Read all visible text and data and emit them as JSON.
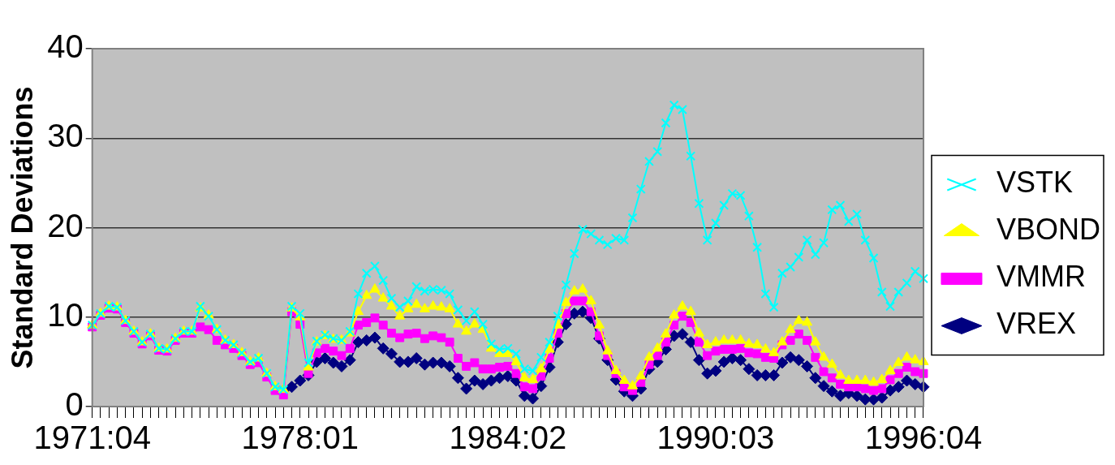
{
  "chart_data": {
    "type": "line",
    "ylabel": "Standard Deviations",
    "categories": [
      "1971:04",
      null,
      null,
      null,
      null,
      null,
      null,
      null,
      null,
      null,
      null,
      null,
      null,
      null,
      null,
      null,
      null,
      null,
      null,
      null,
      null,
      null,
      null,
      null,
      null,
      "1978:01",
      null,
      null,
      null,
      null,
      null,
      null,
      null,
      null,
      null,
      null,
      null,
      null,
      null,
      null,
      null,
      null,
      null,
      null,
      null,
      null,
      null,
      null,
      null,
      null,
      "1984:02",
      null,
      null,
      null,
      null,
      null,
      null,
      null,
      null,
      null,
      null,
      null,
      null,
      null,
      null,
      null,
      null,
      null,
      null,
      null,
      null,
      null,
      null,
      null,
      null,
      "1990:03",
      null,
      null,
      null,
      null,
      null,
      null,
      null,
      null,
      null,
      null,
      null,
      null,
      null,
      null,
      null,
      null,
      null,
      null,
      null,
      null,
      null,
      null,
      null,
      null,
      "1996:04"
    ],
    "series": [
      {
        "name": "VSTK",
        "color": "#00ffff",
        "marker": "cross",
        "values": [
          9.1,
          10.4,
          11.2,
          11.1,
          9.6,
          8.4,
          7.2,
          8.1,
          6.5,
          6.4,
          7.6,
          8.4,
          8.4,
          11.2,
          10.1,
          8.6,
          7.4,
          6.9,
          6.0,
          5.0,
          5.4,
          3.7,
          2.2,
          1.9,
          11.2,
          10.4,
          4.9,
          7.3,
          8.0,
          7.6,
          7.4,
          8.4,
          12.6,
          14.9,
          15.7,
          14.1,
          12.1,
          11.1,
          11.8,
          13.4,
          12.9,
          13.1,
          13.0,
          12.6,
          10.8,
          9.6,
          10.6,
          9.2,
          7.0,
          6.4,
          6.5,
          5.9,
          4.2,
          4.0,
          5.5,
          7.2,
          10.1,
          13.6,
          17.1,
          19.8,
          19.3,
          18.6,
          18.1,
          18.8,
          18.6,
          21.1,
          24.3,
          27.4,
          28.5,
          31.7,
          33.7,
          33.2,
          28.0,
          22.7,
          18.6,
          20.5,
          22.5,
          23.8,
          23.6,
          21.3,
          17.8,
          12.6,
          11.1,
          14.9,
          15.6,
          16.7,
          18.6,
          17.0,
          18.3,
          22.0,
          22.5,
          20.7,
          21.5,
          18.6,
          16.6,
          12.8,
          11.2,
          12.8,
          13.8,
          15.1,
          14.3
        ]
      },
      {
        "name": "VBOND",
        "color": "#ffff00",
        "marker": "triangle",
        "values": [
          9.1,
          10.4,
          11.2,
          11.1,
          9.6,
          8.4,
          7.2,
          8.1,
          6.5,
          6.4,
          7.6,
          8.4,
          8.4,
          11.0,
          10.2,
          8.6,
          7.4,
          6.9,
          6.0,
          5.0,
          5.4,
          3.7,
          2.2,
          1.9,
          11.0,
          10.0,
          4.4,
          7.2,
          7.9,
          7.5,
          7.4,
          8.2,
          10.6,
          12.4,
          13.1,
          12.1,
          11.2,
          10.1,
          10.9,
          11.4,
          10.9,
          11.2,
          11.1,
          10.9,
          9.2,
          8.4,
          9.2,
          8.6,
          6.5,
          5.9,
          5.9,
          5.0,
          3.2,
          3.0,
          4.2,
          6.4,
          9.1,
          11.6,
          12.9,
          13.1,
          11.8,
          9.1,
          6.2,
          4.0,
          2.9,
          2.3,
          3.4,
          5.5,
          6.5,
          8.1,
          10.2,
          11.2,
          10.6,
          8.2,
          6.9,
          7.2,
          7.4,
          7.4,
          7.4,
          7.0,
          6.9,
          6.4,
          6.0,
          7.2,
          8.6,
          9.6,
          9.4,
          7.2,
          5.5,
          4.7,
          3.5,
          2.9,
          2.9,
          2.9,
          2.7,
          3.0,
          4.0,
          4.9,
          5.5,
          5.2,
          5.0
        ]
      },
      {
        "name": "VMMR",
        "color": "#ff00ff",
        "marker": "square",
        "values": [
          8.9,
          10.2,
          11.0,
          10.9,
          9.4,
          8.2,
          7.0,
          7.9,
          6.3,
          6.2,
          7.4,
          8.2,
          8.2,
          8.9,
          8.6,
          7.4,
          6.9,
          6.5,
          5.7,
          4.7,
          4.9,
          3.3,
          1.8,
          1.3,
          10.6,
          9.2,
          3.7,
          6.0,
          6.5,
          6.2,
          5.7,
          6.5,
          9.1,
          9.4,
          9.9,
          9.1,
          8.2,
          7.7,
          8.1,
          8.2,
          7.6,
          7.9,
          7.7,
          7.2,
          5.4,
          4.5,
          4.9,
          4.2,
          4.2,
          4.4,
          4.5,
          3.7,
          2.2,
          2.0,
          3.4,
          5.4,
          8.2,
          10.4,
          11.8,
          11.8,
          10.6,
          7.9,
          5.7,
          3.7,
          2.2,
          1.8,
          2.7,
          4.7,
          5.7,
          7.2,
          9.1,
          10.1,
          9.4,
          7.2,
          5.7,
          6.2,
          6.4,
          6.4,
          6.5,
          6.0,
          5.9,
          5.5,
          5.4,
          6.9,
          7.4,
          8.1,
          7.4,
          5.5,
          3.9,
          3.2,
          2.5,
          2.2,
          2.2,
          2.0,
          1.8,
          2.0,
          3.0,
          3.7,
          4.4,
          3.9,
          3.7
        ]
      },
      {
        "name": "VREX",
        "color": "#000080",
        "marker": "diamond",
        "values": [
          null,
          null,
          null,
          null,
          null,
          null,
          null,
          null,
          null,
          null,
          null,
          null,
          null,
          null,
          null,
          null,
          null,
          null,
          null,
          null,
          null,
          null,
          null,
          1.8,
          2.2,
          2.9,
          3.5,
          5.0,
          5.4,
          4.9,
          4.5,
          5.2,
          7.2,
          7.4,
          7.7,
          6.5,
          5.9,
          5.0,
          5.0,
          5.4,
          4.7,
          4.9,
          4.9,
          4.5,
          3.2,
          2.0,
          2.9,
          2.5,
          2.9,
          3.2,
          3.4,
          2.9,
          1.2,
          0.9,
          2.3,
          4.4,
          7.2,
          9.2,
          10.4,
          10.6,
          9.9,
          7.6,
          5.2,
          3.0,
          1.7,
          1.2,
          2.0,
          4.2,
          5.0,
          6.4,
          7.9,
          8.1,
          7.2,
          5.2,
          3.7,
          4.0,
          5.0,
          5.4,
          5.2,
          4.2,
          3.5,
          3.5,
          3.5,
          4.9,
          5.5,
          5.2,
          4.5,
          3.2,
          2.3,
          1.7,
          1.2,
          1.5,
          1.2,
          0.8,
          0.8,
          1.0,
          1.8,
          2.2,
          2.9,
          2.5,
          2.2
        ]
      }
    ],
    "ylim": [
      0,
      40
    ],
    "yticks": [
      0,
      10,
      20,
      30,
      40
    ],
    "grid": "y",
    "legend": "right",
    "line_style": "solid"
  }
}
